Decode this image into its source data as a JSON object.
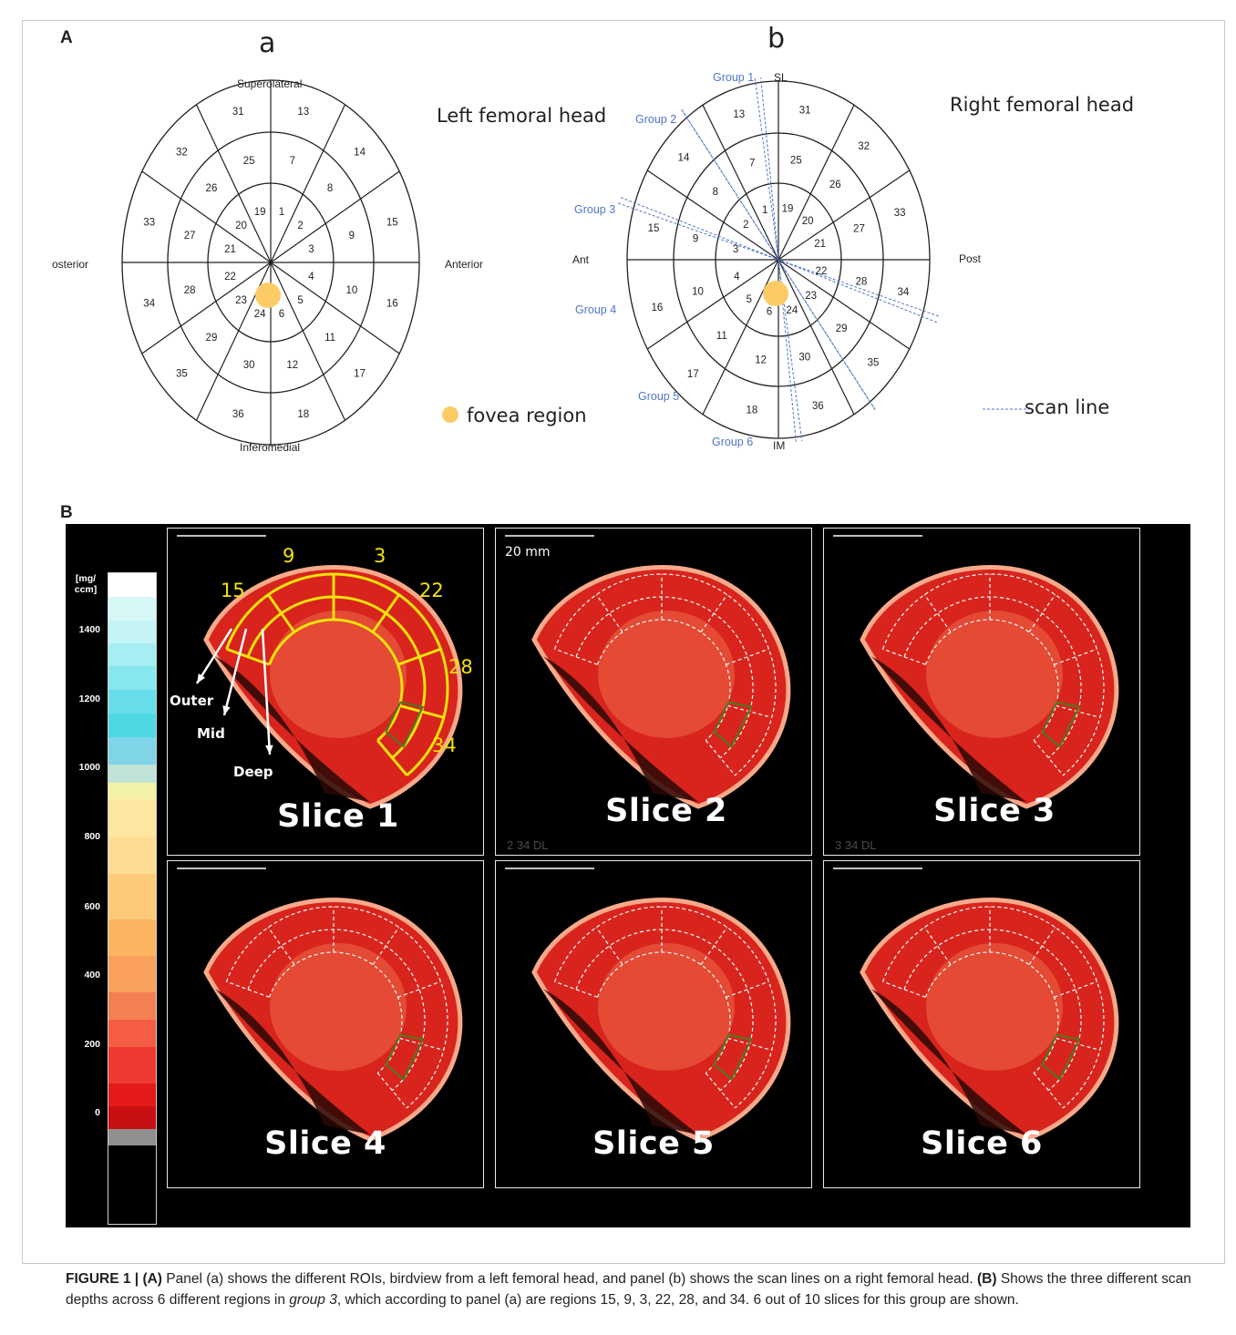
{
  "figure": {
    "label_A": "A",
    "label_B": "B"
  },
  "panel_a": {
    "sub_label": "a",
    "title": "Left femoral head",
    "dir_top": "Superolateral",
    "dir_bottom": "Inferomedial",
    "dir_left": "osterior",
    "dir_right": "Anterior",
    "legend_fovea": "fovea region",
    "regions_outer": [
      "13",
      "14",
      "15",
      "16",
      "17",
      "18",
      "36",
      "35",
      "34",
      "33",
      "32",
      "31"
    ],
    "regions_mid": [
      "7",
      "8",
      "9",
      "10",
      "11",
      "12",
      "30",
      "29",
      "28",
      "27",
      "26",
      "25"
    ],
    "regions_inner": [
      "1",
      "2",
      "3",
      "4",
      "5",
      "6",
      "24",
      "23",
      "22",
      "21",
      "20",
      "19"
    ]
  },
  "panel_b": {
    "sub_label": "b",
    "title": "Right femoral head",
    "dir_top": "SL",
    "dir_bottom": "IM",
    "dir_left": "Ant",
    "dir_right": "Post",
    "legend_scan": "scan line",
    "groups": [
      "Group 1",
      "Group 2",
      "Group 3",
      "Group 4",
      "Group 5",
      "Group 6"
    ],
    "regions_outer": [
      "31",
      "32",
      "33",
      "34",
      "35",
      "36",
      "18",
      "17",
      "16",
      "15",
      "14",
      "13"
    ],
    "regions_mid": [
      "25",
      "26",
      "27",
      "28",
      "29",
      "30",
      "12",
      "11",
      "10",
      "9",
      "8",
      "7"
    ],
    "regions_inner": [
      "19",
      "20",
      "21",
      "22",
      "23",
      "24",
      "6",
      "5",
      "4",
      "3",
      "2",
      "1"
    ]
  },
  "colorbar": {
    "unit": "[mg/ ccm]",
    "ticks": [
      "1400",
      "1200",
      "1000",
      "800",
      "600",
      "400",
      "200",
      "0"
    ]
  },
  "slices": {
    "labels": [
      "Slice 1",
      "Slice 2",
      "Slice 3",
      "Slice 4",
      "Slice 5",
      "Slice 6"
    ],
    "scale_label": "20 mm",
    "slice1_regions": [
      "15",
      "9",
      "3",
      "22",
      "28",
      "34"
    ],
    "depth_labels": [
      "Outer",
      "Mid",
      "Deep"
    ],
    "overlay_texts": [
      "2 34 DL",
      "3 34 DL"
    ]
  },
  "caption": {
    "fig": "FIGURE 1 | ",
    "a_tag": "(A)",
    "p1": " Panel (a) shows the different ROIs, birdview from a left femoral head, and panel (b) shows the scan lines on a right femoral head. ",
    "b_tag": "(B)",
    "p2": " Shows the three different scan depths across 6 different regions in ",
    "group": "group 3",
    "p3": ", which according to panel (a) are regions 15, 9, 3, 22, 28, and 34. 6 out of 10 slices for this group are shown."
  }
}
